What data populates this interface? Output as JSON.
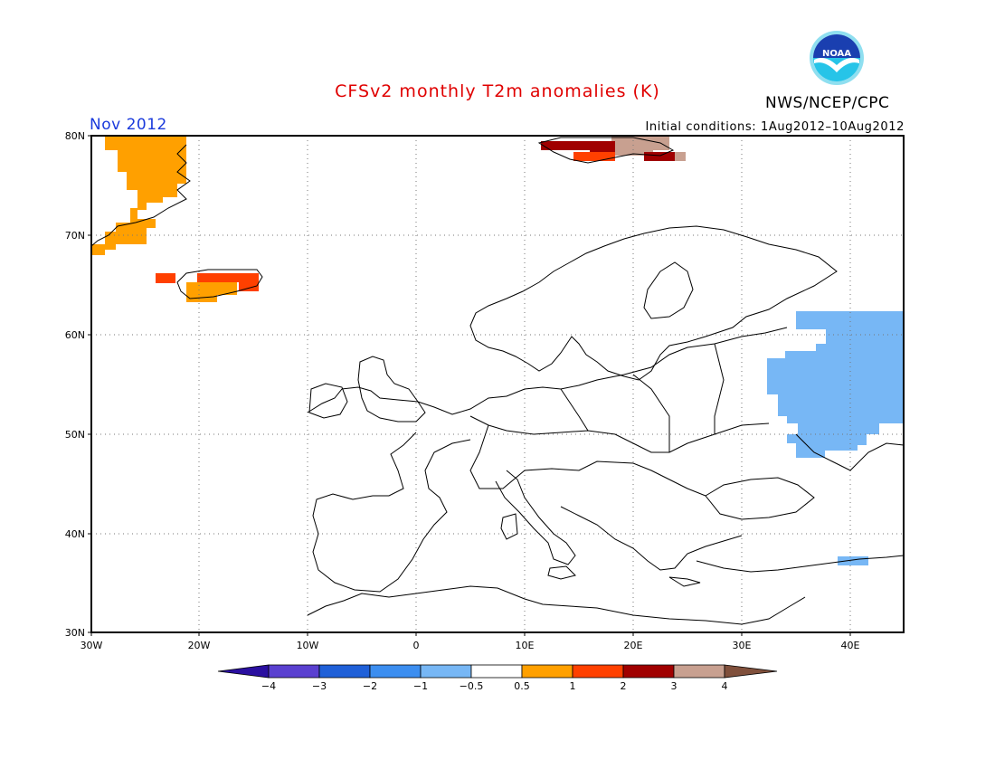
{
  "header": {
    "title": "CFSv2 monthly T2m anomalies (K)",
    "org": "NWS/NCEP/CPC",
    "logo_text": "NOAA",
    "period": "Nov 2012",
    "initial_conditions": "Initial conditions: 1Aug2012–10Aug2012"
  },
  "map": {
    "lon_range": [
      -30,
      45
    ],
    "lat_range": [
      30,
      80
    ],
    "grid": "dotted",
    "lat_labels": [
      "80N",
      "70N",
      "60N",
      "50N",
      "40N",
      "30N"
    ],
    "lon_labels": [
      "30W",
      "20W",
      "10W",
      "0",
      "10E",
      "20E",
      "30E",
      "40E"
    ]
  },
  "colorbar": {
    "tick_labels": [
      "−4",
      "−3",
      "−2",
      "−1",
      "−0.5",
      "0.5",
      "1",
      "2",
      "3",
      "4"
    ],
    "colors": [
      "#2a0fa0",
      "#5a40d0",
      "#1f60d8",
      "#3c8ef0",
      "#77b7f5",
      "#ffffff",
      "#ffa000",
      "#ff4000",
      "#a00000",
      "#c8a090",
      "#80503c"
    ]
  }
}
